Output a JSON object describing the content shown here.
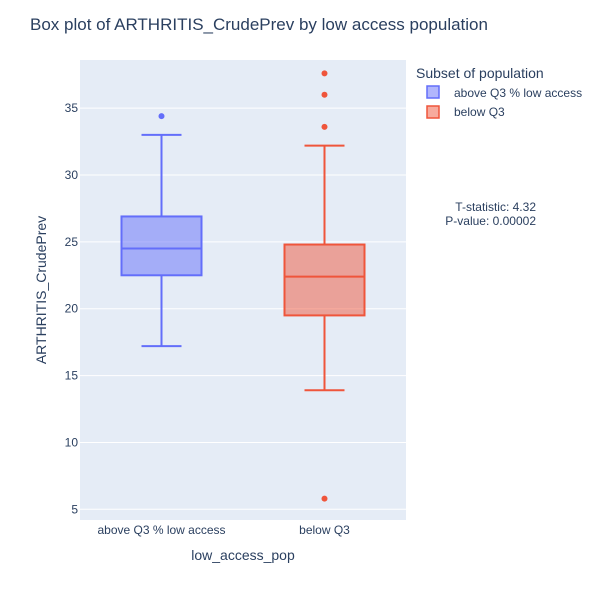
{
  "chart_data": {
    "type": "box",
    "title": "Box plot of ARTHRITIS_CrudePrev by low access population",
    "xlabel": "low_access_pop",
    "ylabel": "ARTHRITIS_CrudePrev",
    "categories": [
      "above Q3 % low access",
      "below Q3"
    ],
    "ylim": [
      4.2,
      38.6
    ],
    "yticks": [
      5,
      10,
      15,
      20,
      25,
      30,
      35
    ],
    "grid": true,
    "legend": {
      "title": "Subset of population",
      "placement": "top-right",
      "entries": [
        "above Q3 % low access",
        "below Q3"
      ]
    },
    "series": [
      {
        "name": "above Q3 % low access",
        "color": "#636efa",
        "fill": "rgba(99,110,250,0.5)",
        "min": 17.2,
        "q1": 22.5,
        "median": 24.5,
        "q3": 26.9,
        "max": 33.0,
        "outliers": [
          34.4
        ]
      },
      {
        "name": "below Q3",
        "color": "#ef553b",
        "fill": "rgba(239,85,59,0.5)",
        "min": 13.9,
        "q1": 19.5,
        "median": 22.4,
        "q3": 24.8,
        "max": 32.2,
        "outliers": [
          5.8,
          33.6,
          36.0,
          37.6
        ]
      }
    ],
    "annotations": [
      "T-statistic: 4.32",
      "P-value: 0.00002"
    ]
  }
}
